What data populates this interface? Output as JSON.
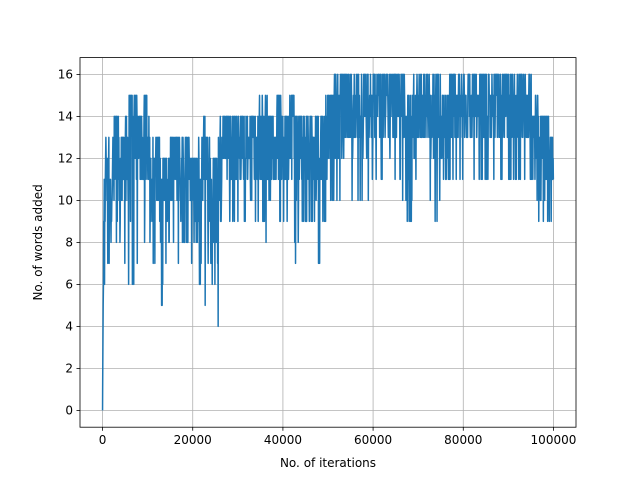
{
  "chart_data": {
    "type": "line",
    "title": "",
    "xlabel": "No. of iterations",
    "ylabel": "No. of words added",
    "xlim": [
      -5000,
      105000
    ],
    "ylim": [
      -0.8,
      16.8
    ],
    "xticks": [
      0,
      20000,
      40000,
      60000,
      80000,
      100000
    ],
    "yticks": [
      0,
      2,
      4,
      6,
      8,
      10,
      12,
      14,
      16
    ],
    "grid": true,
    "series": [
      {
        "color": "#1f77b4",
        "envelope_x": [
          0,
          300,
          600,
          1000,
          1500,
          2000,
          2500,
          3000,
          3500,
          4000,
          4500,
          5000,
          5500,
          6000,
          6500,
          7000,
          7500,
          8000,
          9000,
          10000,
          11000,
          11500,
          12000,
          12500,
          13000,
          13500,
          14000,
          15000,
          16000,
          17000,
          18000,
          19000,
          19500,
          20000,
          20500,
          21000,
          21500,
          22000,
          22500,
          23000,
          23500,
          24000,
          24500,
          25000,
          25500,
          26000,
          27000,
          28000,
          29000,
          30000,
          31000,
          32000,
          33000,
          34000,
          35000,
          36000,
          37000,
          38000,
          39000,
          40000,
          41000,
          42000,
          43000,
          44000,
          45000,
          46000,
          47000,
          48000,
          49000,
          50000,
          51000,
          52000,
          54000,
          56000,
          58000,
          60000,
          62000,
          64000,
          66000,
          68000,
          70000,
          72000,
          74000,
          76000,
          78000,
          80000,
          82000,
          84000,
          86000,
          88000,
          90000,
          92000,
          94000,
          95000,
          96000,
          97000,
          98000,
          99000,
          100000
        ],
        "envelope_high": [
          0,
          11,
          13,
          13,
          13,
          12,
          14,
          14,
          14,
          12,
          14,
          14,
          15,
          15,
          15,
          15,
          15,
          15,
          15,
          15,
          13,
          12,
          13,
          13,
          13,
          13,
          12,
          13,
          13,
          13,
          13,
          13,
          12,
          12,
          12,
          12,
          13,
          14,
          14,
          13,
          13,
          12,
          12,
          12,
          12,
          14,
          14,
          14,
          14,
          14,
          14,
          14,
          14,
          14,
          15,
          15,
          14,
          14,
          15,
          15,
          14,
          15,
          14,
          14,
          14,
          14,
          14,
          14,
          14,
          15,
          16,
          16,
          16,
          16,
          16,
          16,
          16,
          16,
          16,
          15,
          16,
          16,
          16,
          15,
          16,
          16,
          16,
          16,
          16,
          16,
          16,
          16,
          16,
          16,
          15,
          14,
          14,
          14,
          13
        ],
        "envelope_low": [
          0,
          6,
          7,
          7,
          7,
          6,
          9,
          8,
          9,
          8,
          8,
          7,
          7,
          5,
          6,
          6,
          7,
          8,
          8,
          9,
          7,
          7,
          8,
          8,
          4,
          7,
          7,
          8,
          8,
          7,
          8,
          8,
          7,
          7,
          6,
          5,
          6,
          7,
          6,
          5,
          7,
          7,
          6,
          6,
          4,
          5,
          9,
          9,
          9,
          9,
          9,
          9,
          7,
          9,
          9,
          9,
          7,
          9,
          9,
          9,
          9,
          9,
          7,
          9,
          9,
          9,
          9,
          7,
          9,
          9,
          10,
          10,
          10,
          10,
          10,
          11,
          11,
          11,
          11,
          9,
          11,
          11,
          9,
          11,
          11,
          11,
          11,
          11,
          11,
          11,
          11,
          11,
          11,
          11,
          11,
          8,
          9,
          9,
          9
        ]
      }
    ]
  }
}
